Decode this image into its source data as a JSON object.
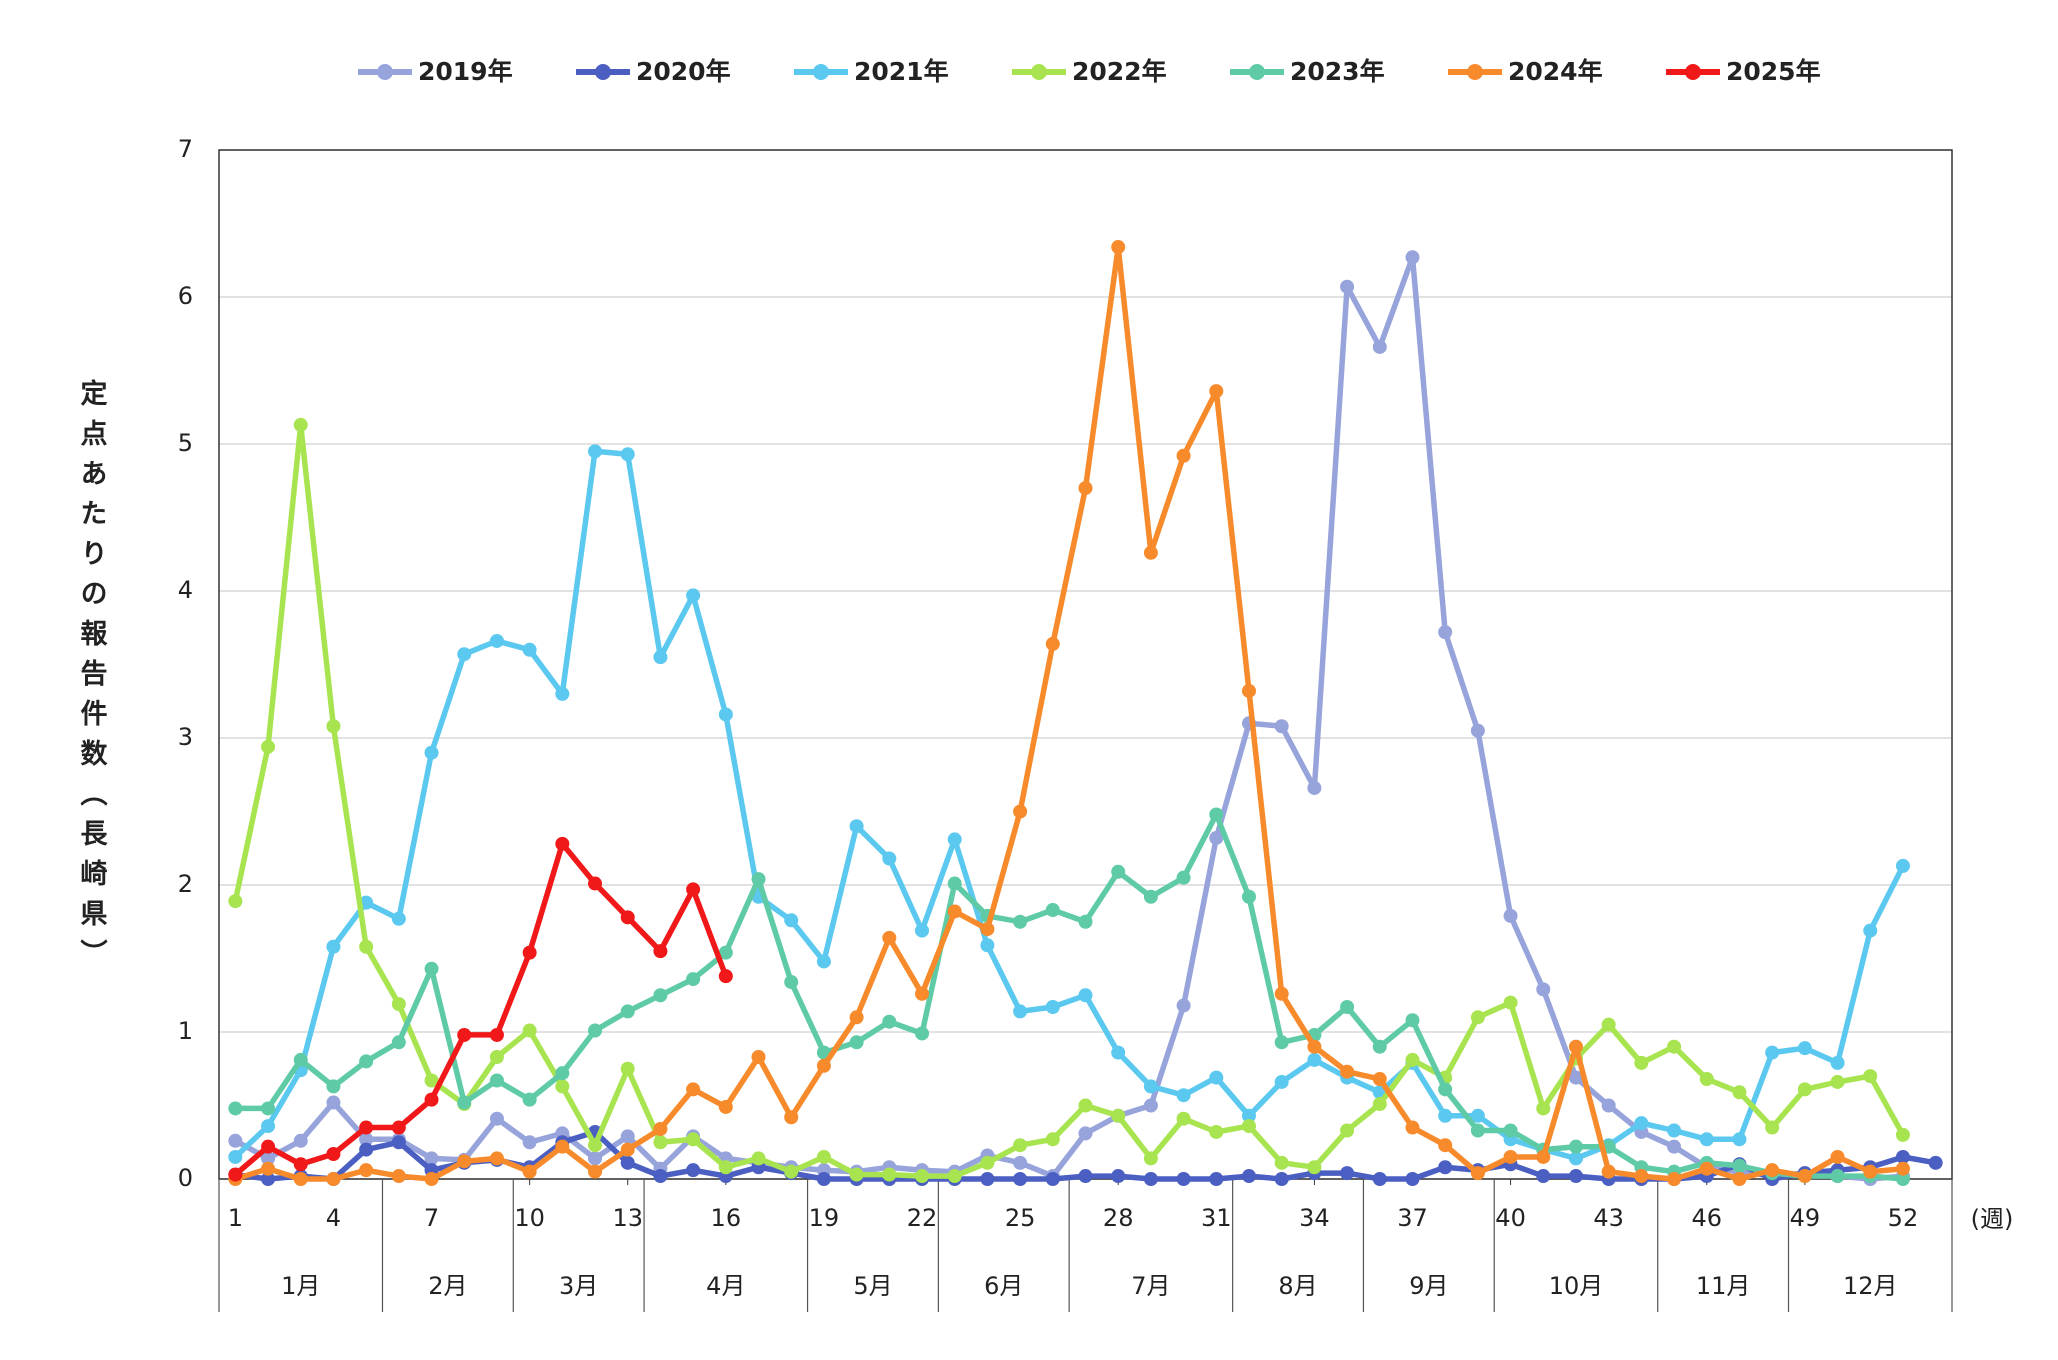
{
  "chart_data": {
    "type": "line",
    "y_label": "定点あたりの報告件数（長崎県）",
    "x_unit_label": "(週)",
    "x": [
      1,
      2,
      3,
      4,
      5,
      6,
      7,
      8,
      9,
      10,
      11,
      12,
      13,
      14,
      15,
      16,
      17,
      18,
      19,
      20,
      21,
      22,
      23,
      24,
      25,
      26,
      27,
      28,
      29,
      30,
      31,
      32,
      33,
      34,
      35,
      36,
      37,
      38,
      39,
      40,
      41,
      42,
      43,
      44,
      45,
      46,
      47,
      48,
      49,
      50,
      51,
      52,
      53
    ],
    "xlim": [
      0.5,
      53.5
    ],
    "xticks": [
      1,
      4,
      7,
      10,
      13,
      16,
      19,
      22,
      25,
      28,
      31,
      34,
      37,
      40,
      43,
      46,
      49,
      52
    ],
    "ylim": [
      0,
      7
    ],
    "yticks": [
      0,
      1,
      2,
      3,
      4,
      5,
      6,
      7
    ],
    "grid": true,
    "months": [
      "1月",
      "2月",
      "3月",
      "4月",
      "5月",
      "6月",
      "7月",
      "8月",
      "9月",
      "10月",
      "11月",
      "12月"
    ],
    "legend": "top",
    "series": [
      {
        "name": "2019年",
        "color": "#97a3db",
        "values": [
          0.26,
          0.14,
          0.26,
          0.52,
          0.27,
          0.27,
          0.14,
          0.13,
          0.41,
          0.25,
          0.31,
          0.14,
          0.29,
          0.07,
          0.29,
          0.14,
          0.11,
          0.08,
          0.06,
          0.05,
          0.08,
          0.06,
          0.05,
          0.16,
          0.11,
          0.02,
          0.31,
          0.43,
          0.5,
          1.18,
          2.32,
          3.1,
          3.08,
          2.66,
          6.07,
          5.66,
          6.27,
          3.72,
          3.05,
          1.79,
          1.29,
          0.69,
          0.5,
          0.32,
          0.22,
          0.08,
          0.05,
          0.02,
          0.04,
          0.02,
          0,
          0.02,
          null
        ]
      },
      {
        "name": "2020年",
        "color": "#4a5fc1",
        "values": [
          0.03,
          0,
          0.02,
          0,
          0.2,
          0.25,
          0.06,
          0.11,
          0.13,
          0.08,
          0.25,
          0.32,
          0.11,
          0.02,
          0.06,
          0.02,
          0.08,
          0.04,
          0,
          0,
          0,
          0,
          0,
          0,
          0,
          0,
          0.02,
          0.02,
          0,
          0,
          0,
          0.02,
          0,
          0.04,
          0.04,
          0,
          0,
          0.08,
          0.06,
          0.1,
          0.02,
          0.02,
          0,
          0,
          0,
          0.02,
          0.1,
          0,
          0.04,
          0.06,
          0.08,
          0.15,
          0.11
        ]
      },
      {
        "name": "2021年",
        "color": "#5bc8ef",
        "values": [
          0.15,
          0.36,
          0.74,
          1.58,
          1.88,
          1.77,
          2.9,
          3.57,
          3.66,
          3.6,
          3.3,
          4.95,
          4.93,
          3.55,
          3.97,
          3.16,
          1.92,
          1.76,
          1.48,
          2.4,
          2.18,
          1.69,
          2.31,
          1.59,
          1.14,
          1.17,
          1.25,
          0.86,
          0.63,
          0.57,
          0.69,
          0.43,
          0.66,
          0.81,
          0.69,
          0.59,
          0.79,
          0.43,
          0.43,
          0.27,
          0.2,
          0.14,
          0.23,
          0.38,
          0.33,
          0.27,
          0.27,
          0.86,
          0.89,
          0.79,
          1.69,
          2.13,
          null
        ]
      },
      {
        "name": "2022年",
        "color": "#a8e44f",
        "values": [
          1.89,
          2.94,
          5.13,
          3.08,
          1.58,
          1.19,
          0.67,
          0.51,
          0.83,
          1.01,
          0.63,
          0.23,
          0.75,
          0.25,
          0.27,
          0.08,
          0.14,
          0.05,
          0.15,
          0.03,
          0.03,
          0.02,
          0.02,
          0.11,
          0.23,
          0.27,
          0.5,
          0.43,
          0.14,
          0.41,
          0.32,
          0.36,
          0.11,
          0.08,
          0.33,
          0.51,
          0.81,
          0.69,
          1.1,
          1.2,
          0.48,
          0.82,
          1.05,
          0.79,
          0.9,
          0.68,
          0.59,
          0.35,
          0.61,
          0.66,
          0.7,
          0.3,
          null
        ]
      },
      {
        "name": "2023年",
        "color": "#5ecba6",
        "values": [
          0.48,
          0.48,
          0.81,
          0.63,
          0.8,
          0.93,
          1.43,
          0.52,
          0.67,
          0.54,
          0.72,
          1.01,
          1.14,
          1.25,
          1.36,
          1.54,
          2.04,
          1.34,
          0.86,
          0.93,
          1.07,
          0.99,
          2.01,
          1.79,
          1.75,
          1.83,
          1.75,
          2.09,
          1.92,
          2.05,
          2.48,
          1.92,
          0.93,
          0.98,
          1.17,
          0.9,
          1.08,
          0.61,
          0.33,
          0.33,
          0.2,
          0.22,
          0.22,
          0.08,
          0.05,
          0.11,
          0.09,
          0.04,
          0.02,
          0.02,
          0.02,
          0,
          null
        ]
      },
      {
        "name": "2024年",
        "color": "#f78a2b",
        "values": [
          0,
          0.07,
          0,
          0,
          0.06,
          0.02,
          0,
          0.12,
          0.14,
          0.05,
          0.22,
          0.05,
          0.2,
          0.34,
          0.61,
          0.49,
          0.83,
          0.42,
          0.77,
          1.1,
          1.64,
          1.26,
          1.82,
          1.7,
          2.5,
          3.64,
          4.7,
          6.34,
          4.26,
          4.92,
          5.36,
          3.32,
          1.26,
          0.9,
          0.73,
          0.68,
          0.35,
          0.23,
          0.04,
          0.15,
          0.15,
          0.9,
          0.05,
          0.02,
          0,
          0.07,
          0,
          0.06,
          0.02,
          0.15,
          0.05,
          0.07,
          null
        ]
      },
      {
        "name": "2025年",
        "color": "#f01818",
        "values": [
          0.03,
          0.22,
          0.1,
          0.17,
          0.35,
          0.35,
          0.54,
          0.98,
          0.98,
          1.54,
          2.28,
          2.01,
          1.78,
          1.55,
          1.97,
          1.38,
          null,
          null,
          null,
          null,
          null,
          null,
          null,
          null,
          null,
          null,
          null,
          null,
          null,
          null,
          null,
          null,
          null,
          null,
          null,
          null,
          null,
          null,
          null,
          null,
          null,
          null,
          null,
          null,
          null,
          null,
          null,
          null,
          null,
          null,
          null,
          null,
          null
        ]
      }
    ]
  }
}
